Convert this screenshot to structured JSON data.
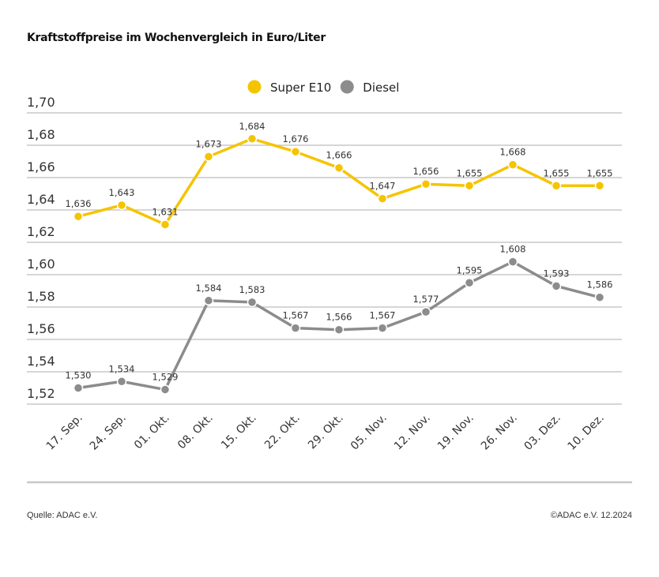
{
  "title": "Kraftstoffpreise im Wochenvergleich in Euro/Liter",
  "footer": {
    "source": "Quelle: ADAC e.V.",
    "copyright": "©ADAC e.V. 12.2024"
  },
  "chart_data": {
    "type": "line",
    "title": "Kraftstoffpreise im Wochenvergleich in Euro/Liter",
    "xlabel": "",
    "ylabel": "",
    "ylim": [
      1.52,
      1.7
    ],
    "yticks": [
      "1,52",
      "1,54",
      "1,56",
      "1,58",
      "1,60",
      "1,62",
      "1,64",
      "1,66",
      "1,68",
      "1,70"
    ],
    "grid": true,
    "legend": "top-center",
    "categories": [
      "17. Sep.",
      "24. Sep.",
      "01. Okt.",
      "08. Okt.",
      "15. Okt.",
      "22. Okt.",
      "29. Okt.",
      "05. Nov.",
      "12. Nov.",
      "19. Nov.",
      "26. Nov.",
      "03. Dez.",
      "10. Dez."
    ],
    "series": [
      {
        "name": "Super E10",
        "color": "#f5c400",
        "values": [
          1.636,
          1.643,
          1.631,
          1.673,
          1.684,
          1.676,
          1.666,
          1.647,
          1.656,
          1.655,
          1.668,
          1.655,
          1.655
        ],
        "labels": [
          "1,636",
          "1,643",
          "1,631",
          "1,673",
          "1,684",
          "1,676",
          "1,666",
          "1,647",
          "1,656",
          "1,655",
          "1,668",
          "1,655",
          "1,655"
        ]
      },
      {
        "name": "Diesel",
        "color": "#8c8c8c",
        "values": [
          1.53,
          1.534,
          1.529,
          1.584,
          1.583,
          1.567,
          1.566,
          1.567,
          1.577,
          1.595,
          1.608,
          1.593,
          1.586
        ],
        "labels": [
          "1,530",
          "1,534",
          "1,529",
          "1,584",
          "1,583",
          "1,567",
          "1,566",
          "1,567",
          "1,577",
          "1,595",
          "1,608",
          "1,593",
          "1,586"
        ]
      }
    ]
  }
}
